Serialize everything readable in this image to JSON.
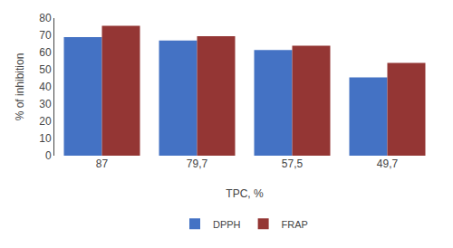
{
  "chart_data": {
    "type": "bar",
    "xlabel": "TPC, %",
    "ylabel": "% of inhibition",
    "categories": [
      "87",
      "79,7",
      "57,5",
      "49,7"
    ],
    "series": [
      {
        "name": "DPPH",
        "color": "#4472C4",
        "values": [
          69,
          67,
          61.5,
          45.5
        ]
      },
      {
        "name": "FRAP",
        "color": "#943634",
        "values": [
          75.5,
          69.5,
          64,
          54
        ]
      }
    ],
    "ylim": [
      0,
      80
    ],
    "yticks": [
      0,
      10,
      20,
      30,
      40,
      50,
      60,
      70,
      80
    ],
    "grid": false,
    "legend": "bottom"
  }
}
